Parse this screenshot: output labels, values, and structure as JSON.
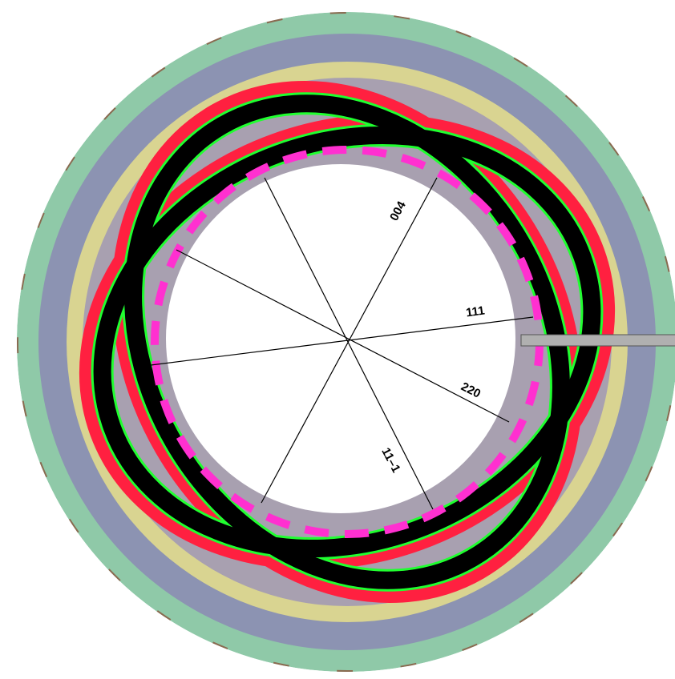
{
  "labels": {
    "d004": "004",
    "d111": "111",
    "d220": "220",
    "d11m1": "11–1"
  }
}
